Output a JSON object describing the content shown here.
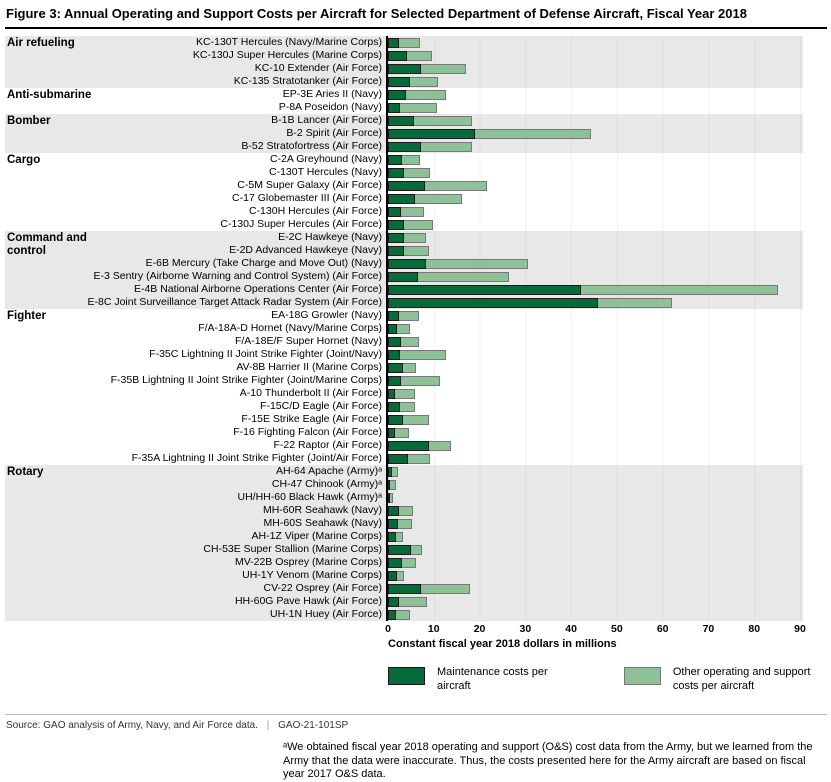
{
  "title": "Figure 3: Annual Operating and Support Costs per Aircraft for Selected Department of Defense Aircraft, Fiscal Year 2018",
  "axis": {
    "ticks": [
      0,
      10,
      20,
      30,
      40,
      50,
      60,
      70,
      80,
      90
    ],
    "max": 90,
    "xlabel": "Constant fiscal year 2018 dollars in millions"
  },
  "legend": {
    "maintenance": {
      "label": "Maintenance costs per aircraft",
      "color": "#076a3a"
    },
    "other": {
      "label": "Other operating and support costs per aircraft",
      "color": "#8ec197"
    }
  },
  "footer": {
    "source": "Source: GAO analysis of Army, Navy, and Air Force data.",
    "divider": "|",
    "report": "GAO-21-101SP"
  },
  "footnote": "ᵃWe obtained fiscal year 2018 operating and support (O&S) cost data from the Army, but we learned from the Army that the data were inaccurate. Thus, the costs presented here for the Army aircraft are based on fiscal year 2017 O&S data.",
  "chart_data": {
    "type": "bar",
    "orientation": "horizontal",
    "stacked": true,
    "xlim": [
      0,
      90
    ],
    "grid": true,
    "legend_position": "bottom",
    "series_names": [
      "Maintenance costs per aircraft",
      "Other operating and support costs per aircraft"
    ],
    "units": "Constant fiscal year 2018 dollars in millions",
    "colors": {
      "maintenance": "#076a3a",
      "other": "#8ec197",
      "band_shaded": "#e8e8e8",
      "band_plain": "#ffffff"
    },
    "sections": [
      {
        "name": "Air refueling",
        "shaded": true,
        "rows": [
          {
            "label": "KC-130T Hercules (Navy/Marine Corps)",
            "maintenance": 2.5,
            "other": 4.5
          },
          {
            "label": "KC-130J Super Hercules (Marine Corps)",
            "maintenance": 4.1,
            "other": 5.5
          },
          {
            "label": "KC-10 Extender (Air Force)",
            "maintenance": 7.1,
            "other": 10.0
          },
          {
            "label": "KC-135 Stratotanker (Air Force)",
            "maintenance": 4.7,
            "other": 6.2
          }
        ]
      },
      {
        "name": "Anti-submarine",
        "shaded": false,
        "rows": [
          {
            "label": "EP-3E Aries II (Navy)",
            "maintenance": 4.0,
            "other": 8.7
          },
          {
            "label": "P-8A Poseidon (Navy)",
            "maintenance": 2.7,
            "other": 8.0
          }
        ]
      },
      {
        "name": "Bomber",
        "shaded": true,
        "rows": [
          {
            "label": "B-1B Lancer (Air Force)",
            "maintenance": 5.7,
            "other": 12.7
          },
          {
            "label": "B-2 Spirit (Air Force)",
            "maintenance": 18.9,
            "other": 25.5
          },
          {
            "label": "B-52 Stratofortress (Air Force)",
            "maintenance": 7.1,
            "other": 11.3
          }
        ]
      },
      {
        "name": "Cargo",
        "shaded": false,
        "rows": [
          {
            "label": "C-2A Greyhound (Navy)",
            "maintenance": 3.1,
            "other": 3.9
          },
          {
            "label": "C-130T Hercules (Navy)",
            "maintenance": 3.6,
            "other": 5.6
          },
          {
            "label": "C-5M Super Galaxy (Air Force)",
            "maintenance": 8.0,
            "other": 13.6
          },
          {
            "label": "C-17 Globemaster III (Air Force)",
            "maintenance": 5.8,
            "other": 10.4
          },
          {
            "label": "C-130H Hercules (Air Force)",
            "maintenance": 2.9,
            "other": 4.9
          },
          {
            "label": "C-130J Super Hercules (Air Force)",
            "maintenance": 3.4,
            "other": 6.4
          }
        ]
      },
      {
        "name": "Command and control",
        "shaded": true,
        "rows": [
          {
            "label": "E-2C Hawkeye (Navy)",
            "maintenance": 3.6,
            "other": 4.6
          },
          {
            "label": "E-2D Advanced Hawkeye (Navy)",
            "maintenance": 3.4,
            "other": 5.5
          },
          {
            "label": "E-6B Mercury (Take Charge and Move Out) (Navy)",
            "maintenance": 8.2,
            "other": 22.4
          },
          {
            "label": "E-3 Sentry (Airborne Warning and Control System) (Air Force)",
            "maintenance": 6.6,
            "other": 19.9
          },
          {
            "label": "E-4B National Airborne Operations Center (Air Force)",
            "maintenance": 42.2,
            "other": 43.0
          },
          {
            "label": "E-8C Joint Surveillance Target Attack Radar System (Air Force)",
            "maintenance": 45.9,
            "other": 16.2
          }
        ]
      },
      {
        "name": "Fighter",
        "shaded": false,
        "rows": [
          {
            "label": "EA-18G Growler (Navy)",
            "maintenance": 2.3,
            "other": 4.4
          },
          {
            "label": "F/A-18A-D Hornet (Navy/Marine Corps)",
            "maintenance": 2.0,
            "other": 2.8
          },
          {
            "label": "F/A-18E/F Super Hornet (Navy)",
            "maintenance": 2.9,
            "other": 3.9
          },
          {
            "label": "F-35C Lightning II Joint Strike Fighter (Joint/Navy)",
            "maintenance": 2.7,
            "other": 10.0
          },
          {
            "label": "AV-8B Harrier II (Marine Corps)",
            "maintenance": 3.3,
            "other": 2.8
          },
          {
            "label": "F-35B Lightning II Joint Strike Fighter (Joint/Marine Corps)",
            "maintenance": 2.9,
            "other": 8.5
          },
          {
            "label": "A-10 Thunderbolt II (Air Force)",
            "maintenance": 1.5,
            "other": 4.5
          },
          {
            "label": "F-15C/D Eagle (Air Force)",
            "maintenance": 2.7,
            "other": 3.3
          },
          {
            "label": "F-15E Strike Eagle (Air Force)",
            "maintenance": 3.3,
            "other": 5.6
          },
          {
            "label": "F-16 Fighting Falcon (Air Force)",
            "maintenance": 1.6,
            "other": 3.0
          },
          {
            "label": "F-22 Raptor (Air Force)",
            "maintenance": 9.0,
            "other": 4.7
          },
          {
            "label": "F-35A Lightning II Joint Strike Fighter (Joint/Air Force)",
            "maintenance": 4.4,
            "other": 4.7
          }
        ]
      },
      {
        "name": "Rotary",
        "shaded": true,
        "rows": [
          {
            "label": "AH-64 Apache (Army)ᵃ",
            "maintenance": 0.9,
            "other": 1.2
          },
          {
            "label": "CH-47 Chinook (Army)ᵃ",
            "maintenance": 0.4,
            "other": 1.4
          },
          {
            "label": "UH/HH-60 Black Hawk (Army)ᵃ",
            "maintenance": 0.2,
            "other": 0.8
          },
          {
            "label": "MH-60R Seahawk (Navy)",
            "maintenance": 2.3,
            "other": 3.1
          },
          {
            "label": "MH-60S Seahawk (Navy)",
            "maintenance": 2.2,
            "other": 3.1
          },
          {
            "label": "AH-1Z Viper (Marine Corps)",
            "maintenance": 1.7,
            "other": 1.6
          },
          {
            "label": "CH-53E Super Stallion (Marine Corps)",
            "maintenance": 5.1,
            "other": 2.4
          },
          {
            "label": "MV-22B Osprey (Marine Corps)",
            "maintenance": 3.1,
            "other": 3.1
          },
          {
            "label": "UH-1Y Venom (Marine Corps)",
            "maintenance": 2.0,
            "other": 1.5
          },
          {
            "label": "CV-22 Osprey (Air Force)",
            "maintenance": 7.1,
            "other": 10.9
          },
          {
            "label": "HH-60G Pave Hawk (Air Force)",
            "maintenance": 2.3,
            "other": 6.3
          },
          {
            "label": "UH-1N Huey (Air Force)",
            "maintenance": 1.8,
            "other": 3.1
          }
        ]
      }
    ]
  }
}
